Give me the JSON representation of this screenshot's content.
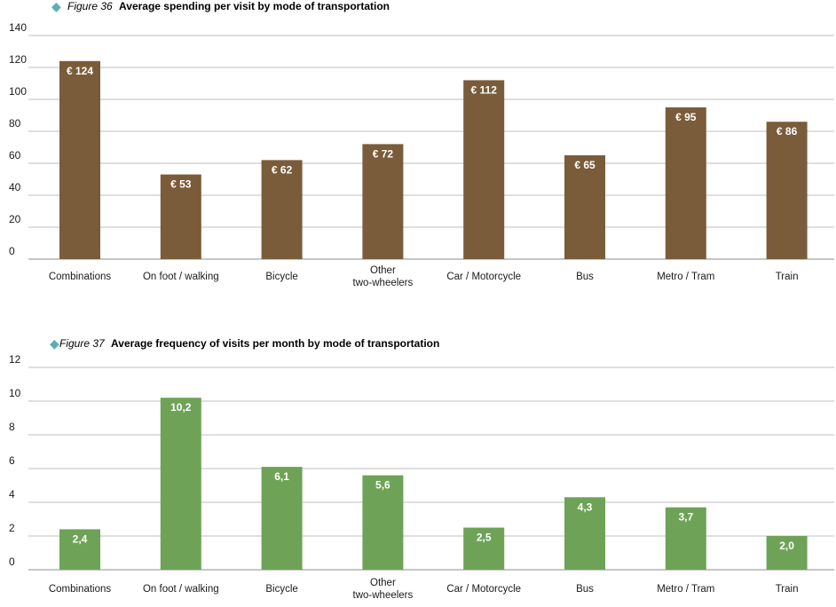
{
  "chart_data": [
    {
      "type": "bar",
      "figure_label": "Figure 36",
      "title": "Average spending per visit by mode of transportation",
      "categories": [
        "Combinations",
        "On foot / walking",
        "Bicycle",
        "Other\ntwo-wheelers",
        "Car / Motorcycle",
        "Bus",
        "Metro / Tram",
        "Train"
      ],
      "values": [
        124,
        53,
        62,
        72,
        112,
        65,
        95,
        86
      ],
      "data_labels": [
        "€ 124",
        "€ 53",
        "€ 62",
        "€ 72",
        "€ 112",
        "€ 65",
        "€ 95",
        "€ 86"
      ],
      "yticks": [
        "0",
        "20",
        "40",
        "60",
        "80",
        "100",
        "120",
        "140"
      ],
      "ylim": [
        0,
        140
      ],
      "xlabel": "",
      "ylabel": "",
      "grid": true,
      "bar_color": "#7a5c3a"
    },
    {
      "type": "bar",
      "figure_label": "Figure 37",
      "title": "Average frequency of visits per month by mode of transportation",
      "categories": [
        "Combinations",
        "On foot / walking",
        "Bicycle",
        "Other\ntwo-wheelers",
        "Car / Motorcycle",
        "Bus",
        "Metro / Tram",
        "Train"
      ],
      "values": [
        2.4,
        10.2,
        6.1,
        5.6,
        2.5,
        4.3,
        3.7,
        2.0
      ],
      "data_labels": [
        "2,4",
        "10,2",
        "6,1",
        "5,6",
        "2,5",
        "4,3",
        "3,7",
        "2,0"
      ],
      "yticks": [
        "0",
        "2",
        "4",
        "6",
        "8",
        "10",
        "12"
      ],
      "ylim": [
        0,
        12
      ],
      "xlabel": "",
      "ylabel": "",
      "grid": true,
      "bar_color": "#6ea357"
    }
  ],
  "colors": {
    "diamond": "#5ab0b0",
    "gridline": "#bfbfbf",
    "axis": "#8c8c8c"
  },
  "icons": {
    "title_marker": "diamond-icon"
  }
}
